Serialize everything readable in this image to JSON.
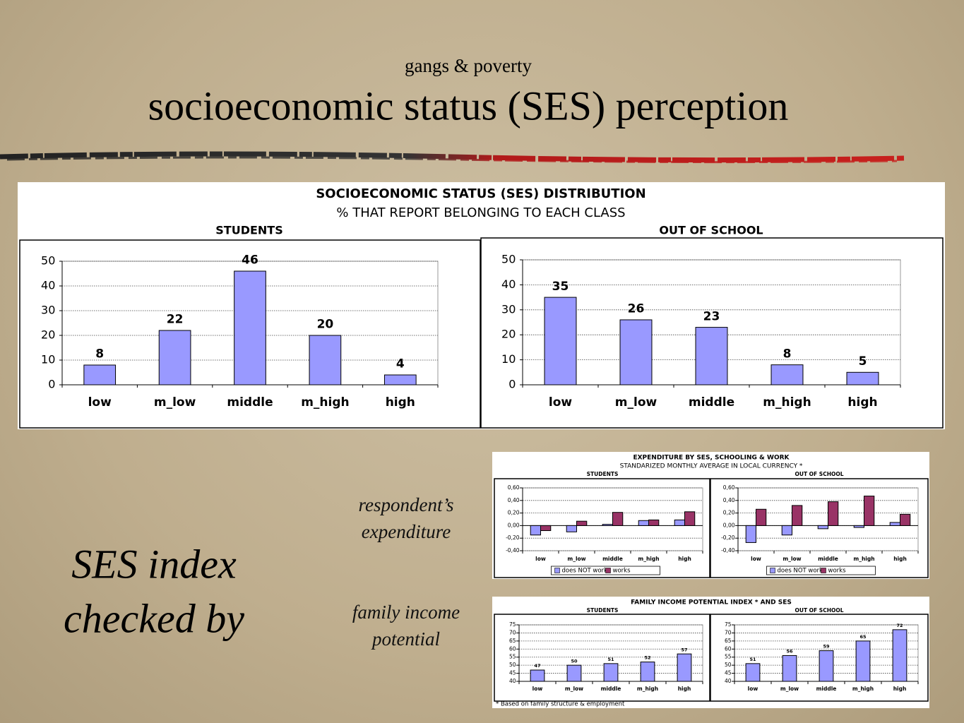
{
  "slide": {
    "subtitle": "gangs & poverty",
    "title": "socioeconomic status (SES) perception",
    "left_text": [
      "SES index",
      "checked by"
    ],
    "side_labels": [
      "respondent’s expenditure",
      "family income potential"
    ]
  },
  "panels": [
    {
      "title": "SOCIOECONOMIC STATUS (SES) DISTRIBUTION",
      "subtitle": "% THAT REPORT BELONGING TO EACH CLASS"
    },
    {
      "title": "EXPENDITURE  BY SES, SCHOOLING & WORK",
      "subtitle": "STANDARIZED MONTHLY AVERAGE IN LOCAL CURRENCY *"
    },
    {
      "title": "FAMILY INCOME POTENTIAL INDEX * AND SES",
      "note": "* Based on family structure & employment"
    }
  ],
  "chart_data": [
    {
      "type": "bar",
      "title": "STUDENTS",
      "categories": [
        "low",
        "m_low",
        "middle",
        "m_high",
        "high"
      ],
      "values": [
        8,
        22,
        46,
        20,
        4
      ],
      "color": "#9999ff",
      "ylim": [
        0,
        50
      ],
      "yticks": [
        0,
        10,
        20,
        30,
        40,
        50
      ],
      "grid": true,
      "data_labels": true
    },
    {
      "type": "bar",
      "title": "OUT OF SCHOOL",
      "categories": [
        "low",
        "m_low",
        "middle",
        "m_high",
        "high"
      ],
      "values": [
        35,
        26,
        23,
        8,
        5
      ],
      "color": "#9999ff",
      "ylim": [
        0,
        50
      ],
      "yticks": [
        0,
        10,
        20,
        30,
        40,
        50
      ],
      "grid": true,
      "data_labels": true
    },
    {
      "type": "bar",
      "title": "STUDENTS",
      "categories": [
        "low",
        "m_low",
        "middle",
        "m_high",
        "high"
      ],
      "series": [
        {
          "name": "does NOT work",
          "color": "#9999ff",
          "values": [
            -0.15,
            -0.1,
            0.02,
            0.08,
            0.09
          ]
        },
        {
          "name": "works",
          "color": "#993366",
          "values": [
            -0.08,
            0.07,
            0.21,
            0.09,
            0.22
          ]
        }
      ],
      "ylim": [
        -0.4,
        0.6
      ],
      "yticks": [
        {
          "value": -0.4,
          "label": "-0,40"
        },
        {
          "value": -0.2,
          "label": "-0,20"
        },
        {
          "value": 0,
          "label": "0,00"
        },
        {
          "value": 0.2,
          "label": "0,20"
        },
        {
          "value": 0.4,
          "label": "0,40"
        },
        {
          "value": 0.6,
          "label": "0,60"
        }
      ],
      "grid": true,
      "legend": "bottom"
    },
    {
      "type": "bar",
      "title": "OUT OF SCHOOL",
      "categories": [
        "low",
        "m_low",
        "middle",
        "m_high",
        "high"
      ],
      "series": [
        {
          "name": "does NOT work",
          "color": "#9999ff",
          "values": [
            -0.27,
            -0.15,
            -0.05,
            -0.03,
            0.05
          ]
        },
        {
          "name": "works",
          "color": "#993366",
          "values": [
            0.26,
            0.32,
            0.38,
            0.47,
            0.18
          ]
        }
      ],
      "ylim": [
        -0.4,
        0.6
      ],
      "yticks": [
        {
          "value": -0.4,
          "label": "-0,40"
        },
        {
          "value": -0.2,
          "label": "-0,20"
        },
        {
          "value": 0,
          "label": "0,00"
        },
        {
          "value": 0.2,
          "label": "0,20"
        },
        {
          "value": 0.4,
          "label": "0,40"
        },
        {
          "value": 0.6,
          "label": "0,60"
        }
      ],
      "grid": true,
      "legend": "bottom"
    },
    {
      "type": "bar",
      "title": "STUDENTS",
      "categories": [
        "low",
        "m_low",
        "middle",
        "m_high",
        "high"
      ],
      "values": [
        47,
        50,
        51,
        52,
        57
      ],
      "color": "#9999ff",
      "ylim": [
        40,
        75
      ],
      "yticks": [
        40,
        45,
        50,
        55,
        60,
        65,
        70,
        75
      ],
      "grid": true,
      "data_labels": true
    },
    {
      "type": "bar",
      "title": "OUT OF SCHOOL",
      "categories": [
        "low",
        "m_low",
        "middle",
        "m_high",
        "high"
      ],
      "values": [
        51,
        56,
        59,
        65,
        72
      ],
      "color": "#9999ff",
      "ylim": [
        40,
        75
      ],
      "yticks": [
        40,
        45,
        50,
        55,
        60,
        65,
        70,
        75
      ],
      "grid": true,
      "data_labels": true
    }
  ]
}
